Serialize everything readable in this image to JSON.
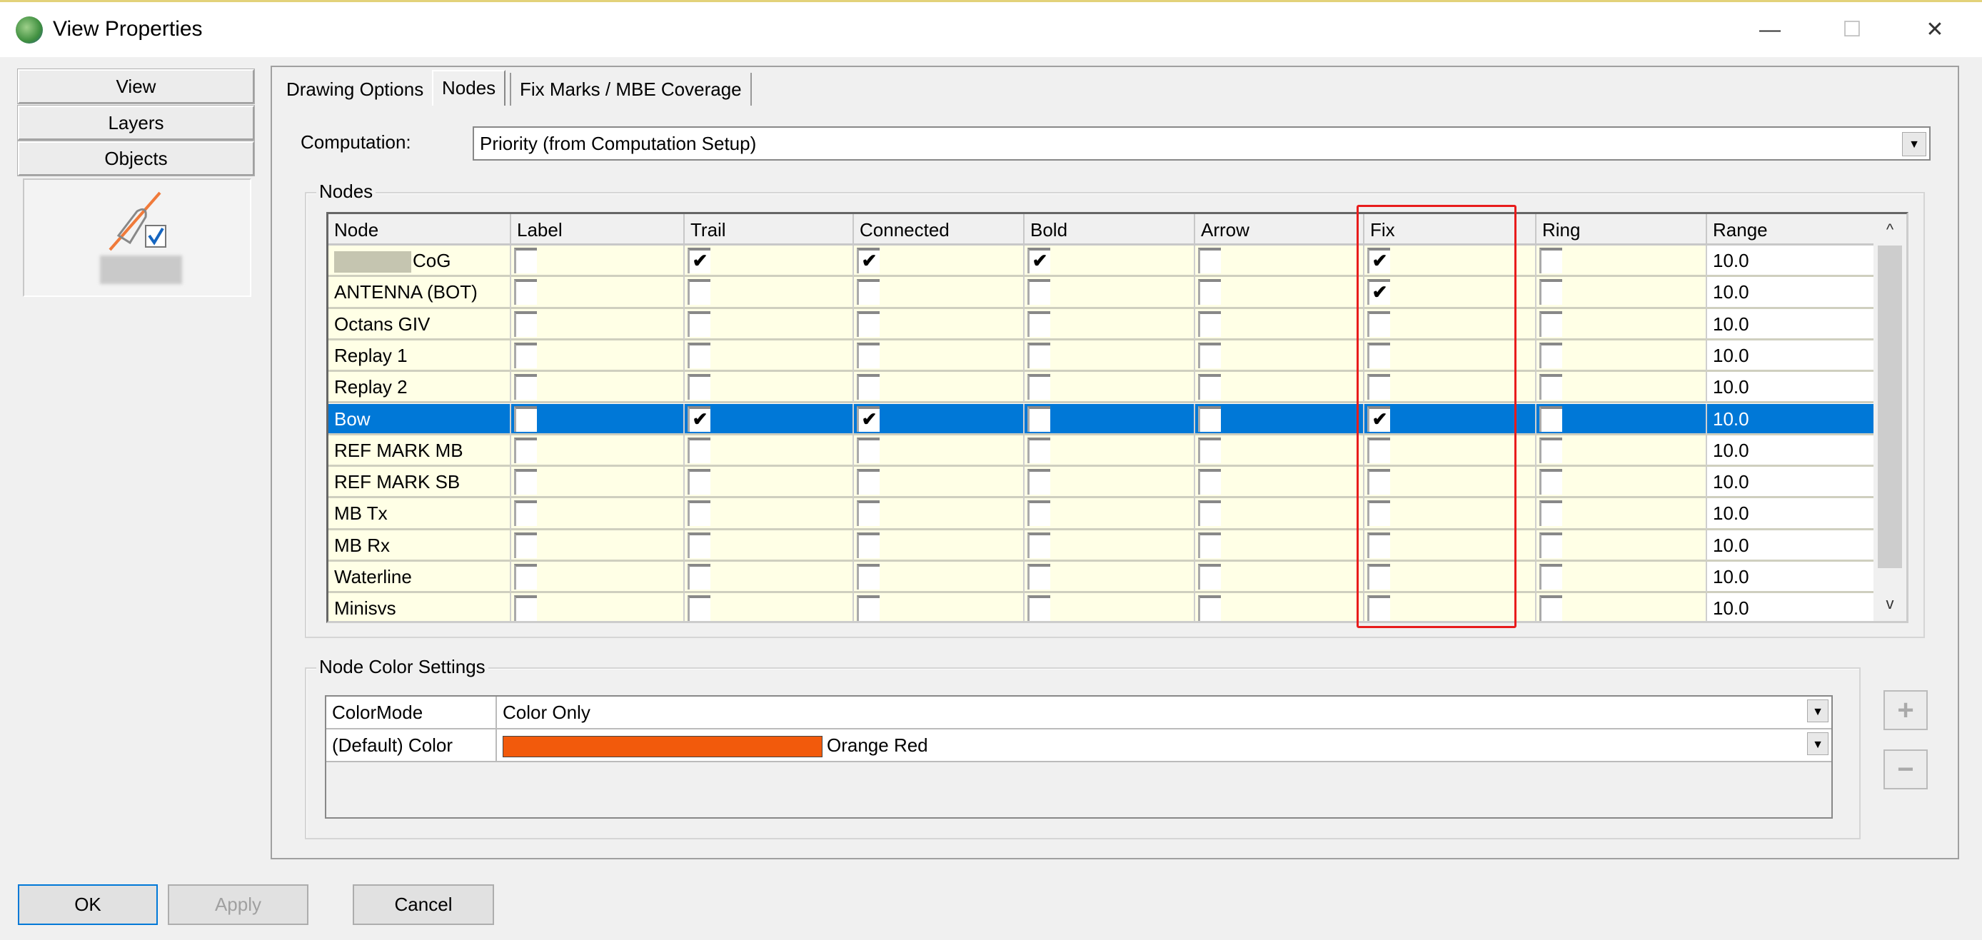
{
  "window": {
    "title": "View Properties",
    "minimize": "—",
    "maximize": "☐",
    "close": "✕"
  },
  "sidebar": {
    "items": [
      {
        "label": "View"
      },
      {
        "label": "Layers"
      },
      {
        "label": "Objects"
      }
    ],
    "object_icon": "node-object-icon"
  },
  "tabs": [
    {
      "label": "Drawing Options"
    },
    {
      "label": "Nodes",
      "active": true
    },
    {
      "label": "Fix Marks / MBE Coverage"
    }
  ],
  "computation": {
    "label": "Computation:",
    "value": "Priority (from Computation Setup)"
  },
  "nodes_group": {
    "title": "Nodes",
    "columns": [
      "Node",
      "Label",
      "Trail",
      "Connected",
      "Bold",
      "Arrow",
      "Fix",
      "Ring",
      "Range"
    ],
    "rows": [
      {
        "node": "CoG",
        "redacted_prefix": true,
        "checks": [
          false,
          true,
          true,
          true,
          false,
          true,
          false
        ],
        "range": "10.0"
      },
      {
        "node": "ANTENNA (BOT)",
        "checks": [
          false,
          false,
          false,
          false,
          false,
          true,
          false
        ],
        "range": "10.0"
      },
      {
        "node": "Octans GIV",
        "checks": [
          false,
          false,
          false,
          false,
          false,
          false,
          false
        ],
        "range": "10.0"
      },
      {
        "node": "Replay 1",
        "checks": [
          false,
          false,
          false,
          false,
          false,
          false,
          false
        ],
        "range": "10.0"
      },
      {
        "node": "Replay 2",
        "checks": [
          false,
          false,
          false,
          false,
          false,
          false,
          false
        ],
        "range": "10.0"
      },
      {
        "node": "Bow",
        "selected": true,
        "checks": [
          false,
          true,
          true,
          false,
          false,
          true,
          false
        ],
        "range": "10.0"
      },
      {
        "node": "REF MARK MB",
        "checks": [
          false,
          false,
          false,
          false,
          false,
          false,
          false
        ],
        "range": "10.0"
      },
      {
        "node": "REF MARK SB",
        "checks": [
          false,
          false,
          false,
          false,
          false,
          false,
          false
        ],
        "range": "10.0"
      },
      {
        "node": "MB Tx",
        "checks": [
          false,
          false,
          false,
          false,
          false,
          false,
          false
        ],
        "range": "10.0"
      },
      {
        "node": "MB Rx",
        "checks": [
          false,
          false,
          false,
          false,
          false,
          false,
          false
        ],
        "range": "10.0"
      },
      {
        "node": "Waterline",
        "checks": [
          false,
          false,
          false,
          false,
          false,
          false,
          false
        ],
        "range": "10.0"
      },
      {
        "node": "Minisvs",
        "checks": [
          false,
          false,
          false,
          false,
          false,
          false,
          false
        ],
        "range": "10.0"
      }
    ]
  },
  "color_group": {
    "title": "Node Color Settings",
    "rows": [
      {
        "name": "ColorMode",
        "value": "Color Only"
      },
      {
        "name": "(Default) Color",
        "value": "Orange Red",
        "swatch": "#f25a0c"
      }
    ],
    "add": "+",
    "remove": "−"
  },
  "buttons": {
    "ok": "OK",
    "apply": "Apply",
    "cancel": "Cancel"
  },
  "colors": {
    "selection": "#0078d7",
    "highlight_box": "#e81c1c",
    "row_bg": "#ffffe6"
  }
}
